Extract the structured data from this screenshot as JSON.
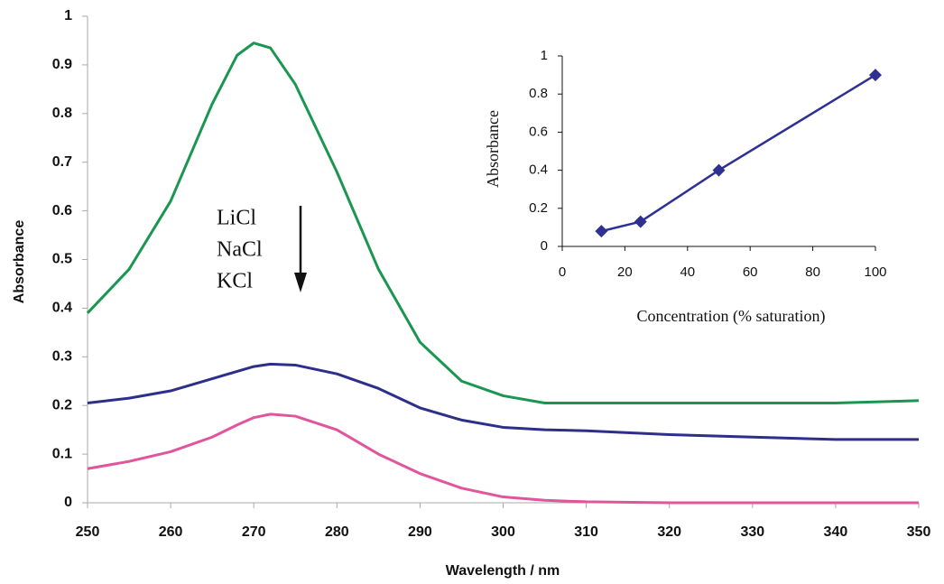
{
  "chart_data": [
    {
      "type": "line",
      "xlabel": "Wavelength / nm",
      "ylabel": "Absorbance",
      "annotations": [
        "LiCl",
        "NaCl",
        "KCl"
      ],
      "x": [
        250,
        255,
        260,
        265,
        268,
        270,
        272,
        275,
        280,
        285,
        290,
        295,
        300,
        305,
        310,
        320,
        330,
        340,
        350
      ],
      "series": [
        {
          "color": "#1a9650",
          "values": [
            0.39,
            0.48,
            0.62,
            0.82,
            0.92,
            0.945,
            0.935,
            0.86,
            0.68,
            0.48,
            0.33,
            0.25,
            0.22,
            0.205,
            0.205,
            0.205,
            0.205,
            0.205,
            0.21
          ]
        },
        {
          "color": "#2e2f8a",
          "values": [
            0.205,
            0.215,
            0.23,
            0.255,
            0.27,
            0.28,
            0.285,
            0.283,
            0.265,
            0.235,
            0.195,
            0.17,
            0.155,
            0.15,
            0.148,
            0.14,
            0.135,
            0.13,
            0.13
          ]
        },
        {
          "color": "#e0559b",
          "values": [
            0.07,
            0.085,
            0.105,
            0.135,
            0.16,
            0.175,
            0.182,
            0.178,
            0.15,
            0.1,
            0.06,
            0.03,
            0.012,
            0.005,
            0.002,
            0,
            0,
            0,
            0
          ]
        }
      ],
      "xlim": [
        250,
        350
      ],
      "xticks": [
        250,
        260,
        270,
        280,
        290,
        300,
        310,
        320,
        330,
        340,
        350
      ],
      "ylim": [
        0,
        1
      ],
      "yticks": [
        0,
        0.1,
        0.2,
        0.3,
        0.4,
        0.5,
        0.6,
        0.7,
        0.8,
        0.9,
        1
      ]
    },
    {
      "type": "line",
      "xlabel": "Concentration (% saturation)",
      "ylabel": "Absorbance",
      "marker": "diamond",
      "x": [
        12.5,
        25,
        50,
        100
      ],
      "series": [
        {
          "color": "#2e3192",
          "values": [
            0.08,
            0.13,
            0.4,
            0.9
          ]
        }
      ],
      "xlim": [
        0,
        100
      ],
      "xticks": [
        0,
        20,
        40,
        60,
        80,
        100
      ],
      "ylim": [
        0,
        1
      ],
      "yticks": [
        0,
        0.2,
        0.4,
        0.6,
        0.8,
        1
      ]
    }
  ]
}
